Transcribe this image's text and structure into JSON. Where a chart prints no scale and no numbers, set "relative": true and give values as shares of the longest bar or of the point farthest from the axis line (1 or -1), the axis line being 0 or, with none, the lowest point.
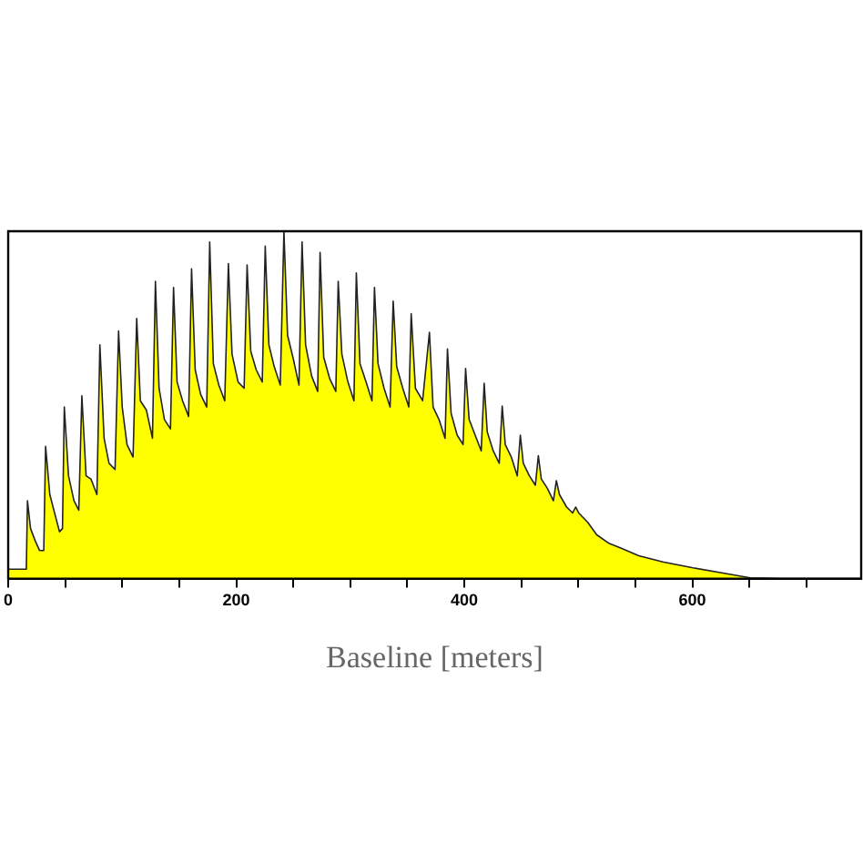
{
  "chart_data": {
    "type": "area",
    "xlabel": "Baseline [meters]",
    "relative": true,
    "color": "#ffff00",
    "xlim": [
      0,
      748
    ],
    "xticks": [
      0,
      {
        "value": 50,
        "label": null
      },
      {
        "value": 100,
        "label": null
      },
      {
        "value": 150,
        "label": null
      },
      200,
      {
        "value": 250,
        "label": null
      },
      {
        "value": 300,
        "label": null
      },
      {
        "value": 350,
        "label": null
      },
      400,
      {
        "value": 450,
        "label": null
      },
      {
        "value": 500,
        "label": null
      },
      {
        "value": 550,
        "label": null
      },
      600,
      {
        "value": 650,
        "label": null
      },
      {
        "value": 700,
        "label": null
      }
    ],
    "grid": false,
    "x": [
      0,
      15.9,
      16.9,
      19.6,
      23.8,
      27.5,
      31.2,
      32.8,
      36.5,
      40.7,
      45.0,
      47.6,
      49.2,
      52.9,
      57.7,
      61.9,
      64.6,
      68.3,
      72.5,
      77.8,
      80.4,
      84.1,
      88.4,
      93.7,
      96.8,
      100,
      104.2,
      109.5,
      112.7,
      115.9,
      121.2,
      126.5,
      129.1,
      132.3,
      137,
      142.3,
      145,
      148.1,
      152.9,
      158.2,
      160.8,
      164,
      168.8,
      174.1,
      176.7,
      179.9,
      184.7,
      189.9,
      193.1,
      196.3,
      201.6,
      206.9,
      209.5,
      212.7,
      217.5,
      222.8,
      225.4,
      228.6,
      233.3,
      238.6,
      241.8,
      245,
      249.7,
      255,
      257.7,
      260.8,
      266.1,
      271.4,
      273.5,
      276.7,
      282,
      287.3,
      289.4,
      292.6,
      297.9,
      303.2,
      305.3,
      308.5,
      313.8,
      319,
      321.2,
      324.3,
      329.6,
      334.9,
      337.6,
      340.7,
      346,
      351.3,
      353.4,
      357.1,
      363.4,
      369.4,
      372.6,
      377.8,
      383.1,
      385.2,
      388.4,
      393.7,
      398.9,
      401.1,
      404.2,
      409.5,
      414.8,
      417.4,
      420.1,
      425.3,
      430.6,
      433.2,
      435.9,
      441.2,
      446.4,
      449.1,
      451.7,
      457.0,
      462.3,
      464.9,
      467.5,
      472.8,
      478.1,
      480.7,
      483.4,
      489.7,
      495.0,
      497.6,
      500.3,
      508.2,
      516.1,
      526.6,
      537.2,
      553.0,
      574.1,
      600.5,
      626.9,
      650.7,
      679.7,
      748
    ],
    "values": [
      0.027,
      0.027,
      0.224,
      0.144,
      0.108,
      0.081,
      0.081,
      0.381,
      0.242,
      0.189,
      0.135,
      0.144,
      0.494,
      0.296,
      0.224,
      0.197,
      0.526,
      0.296,
      0.287,
      0.242,
      0.673,
      0.404,
      0.332,
      0.314,
      0.713,
      0.494,
      0.386,
      0.35,
      0.749,
      0.512,
      0.485,
      0.404,
      0.856,
      0.548,
      0.458,
      0.431,
      0.838,
      0.566,
      0.512,
      0.467,
      0.892,
      0.601,
      0.53,
      0.494,
      0.969,
      0.619,
      0.557,
      0.512,
      0.907,
      0.646,
      0.566,
      0.548,
      0.903,
      0.655,
      0.601,
      0.566,
      0.957,
      0.673,
      0.61,
      0.557,
      1.0,
      0.7,
      0.637,
      0.557,
      0.969,
      0.673,
      0.583,
      0.539,
      0.939,
      0.637,
      0.575,
      0.539,
      0.856,
      0.646,
      0.566,
      0.512,
      0.88,
      0.619,
      0.566,
      0.512,
      0.838,
      0.619,
      0.548,
      0.494,
      0.799,
      0.61,
      0.548,
      0.494,
      0.763,
      0.548,
      0.512,
      0.709,
      0.494,
      0.458,
      0.404,
      0.661,
      0.476,
      0.413,
      0.386,
      0.605,
      0.458,
      0.413,
      0.368,
      0.562,
      0.422,
      0.368,
      0.332,
      0.497,
      0.386,
      0.35,
      0.296,
      0.413,
      0.332,
      0.296,
      0.269,
      0.354,
      0.287,
      0.26,
      0.224,
      0.282,
      0.242,
      0.206,
      0.189,
      0.206,
      0.189,
      0.162,
      0.126,
      0.102,
      0.088,
      0.066,
      0.048,
      0.031,
      0.016,
      0.002,
      0,
      0
    ]
  }
}
